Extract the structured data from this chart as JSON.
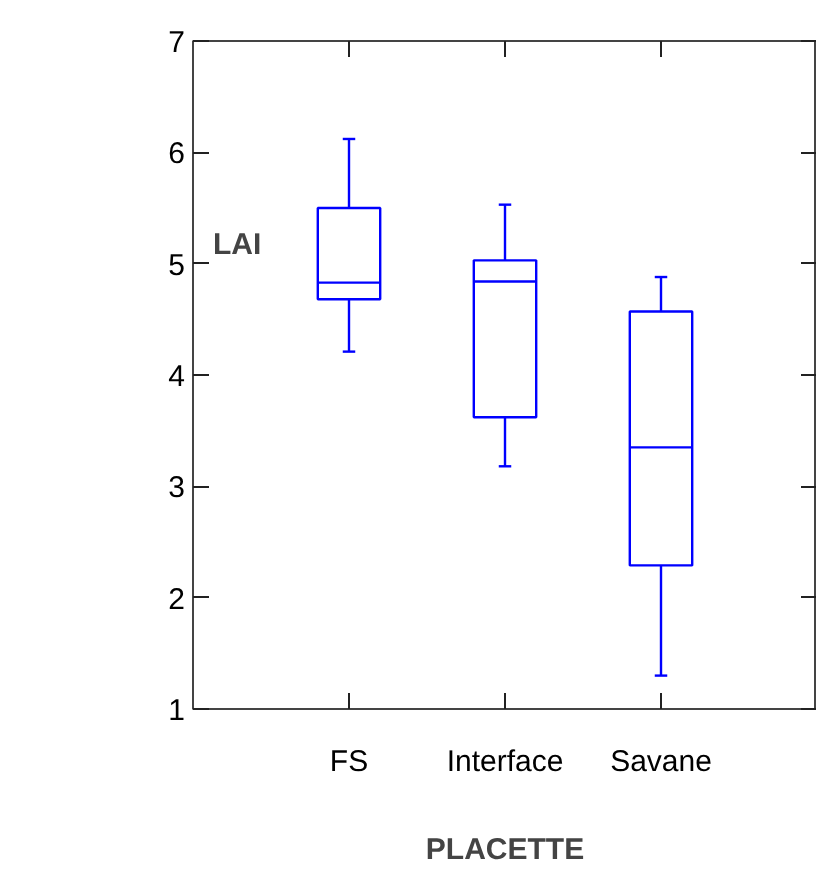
{
  "chart_data": {
    "type": "box",
    "xlabel": "PLACETTE",
    "ylabel": "LAI",
    "categories": [
      "FS",
      "Interface",
      "Savane"
    ],
    "series": [
      {
        "color": "#0000ff",
        "boxes": [
          {
            "low": 4.21,
            "q1": 4.68,
            "median": 4.83,
            "q3": 5.5,
            "high": 6.12
          },
          {
            "low": 3.18,
            "q1": 3.62,
            "median": 4.84,
            "q3": 5.03,
            "high": 5.53
          },
          {
            "low": 1.3,
            "q1": 2.29,
            "median": 3.35,
            "q3": 4.57,
            "high": 4.88
          }
        ]
      }
    ],
    "ylim": [
      1,
      7
    ],
    "yticks": [
      1,
      2,
      3,
      4,
      5,
      6,
      7
    ],
    "grid": false
  }
}
